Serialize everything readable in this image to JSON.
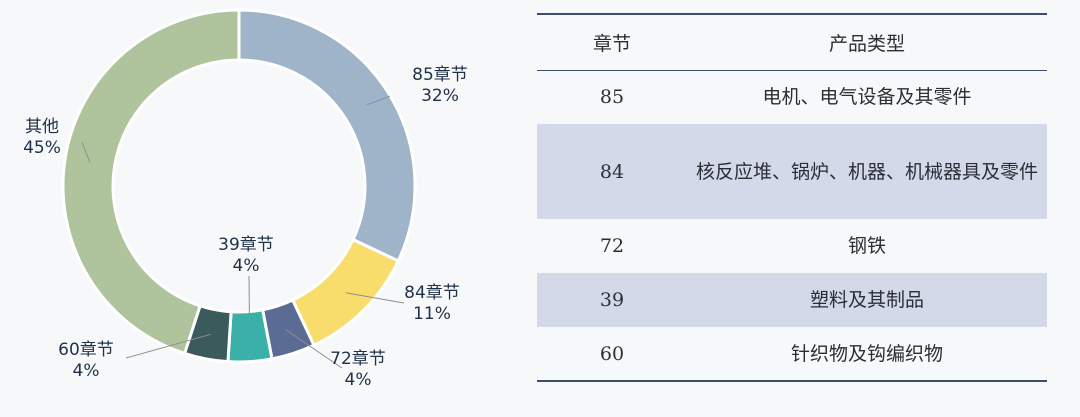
{
  "chart_data": {
    "type": "pie",
    "donut": true,
    "slices": [
      {
        "label": "85章节",
        "pct_label": "32%",
        "value": 32,
        "color": "#9fb4c9"
      },
      {
        "label": "84章节",
        "pct_label": "11%",
        "value": 11,
        "color": "#f8dc6c"
      },
      {
        "label": "72章节",
        "pct_label": "4%",
        "value": 4,
        "color": "#5a6b94"
      },
      {
        "label": "39章节",
        "pct_label": "4%",
        "value": 4,
        "color": "#3ab0a8"
      },
      {
        "label": "60章节",
        "pct_label": "4%",
        "value": 4,
        "color": "#3a5a5c"
      },
      {
        "label": "其他",
        "pct_label": "45%",
        "value": 45,
        "color": "#afc49c"
      }
    ]
  },
  "table": {
    "headers": [
      "章节",
      "产品类型"
    ],
    "rows": [
      {
        "chapter": "85",
        "type": "电机、电气设备及其零件"
      },
      {
        "chapter": "84",
        "type": "核反应堆、锅炉、机器、机械器具及零件"
      },
      {
        "chapter": "72",
        "type": "钢铁"
      },
      {
        "chapter": "39",
        "type": "塑料及其制品"
      },
      {
        "chapter": "60",
        "type": "针织物及钩编织物"
      }
    ]
  }
}
